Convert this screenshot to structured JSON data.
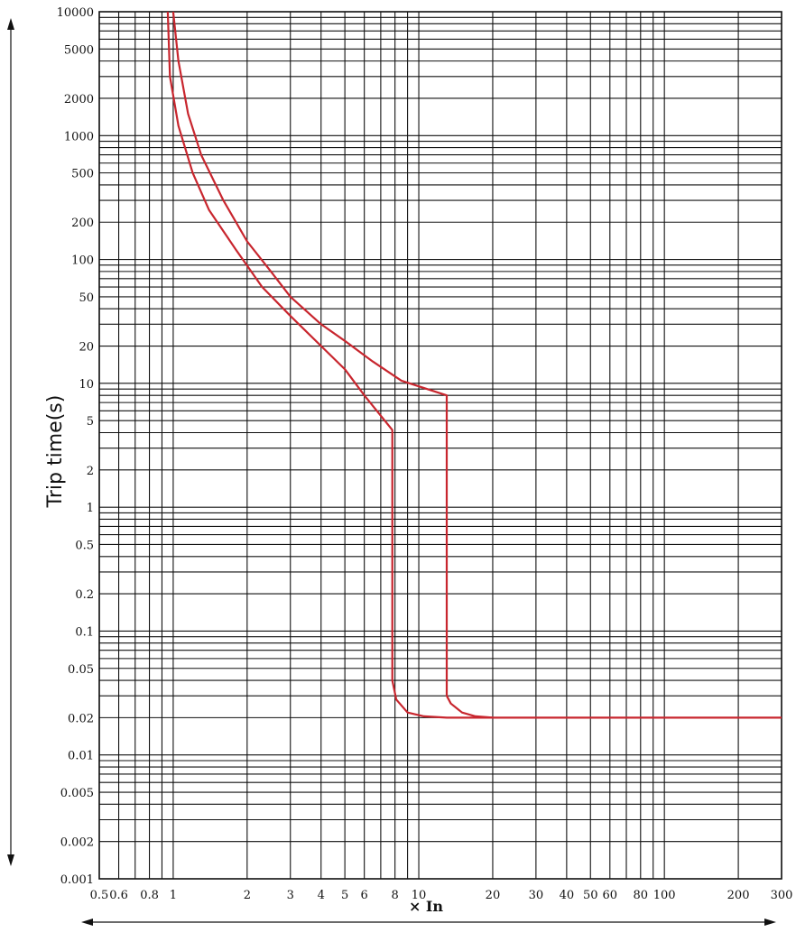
{
  "chart_data": {
    "type": "line",
    "ylabel": "Trip time(s)",
    "xlabel": "× In",
    "x_scale": "log",
    "y_scale": "log",
    "xlim": [
      0.5,
      300
    ],
    "ylim": [
      0.001,
      10000
    ],
    "grid": true,
    "x_ticks": [
      {
        "v": 0.5,
        "t": "0.5"
      },
      {
        "v": 0.6,
        "t": "0.6"
      },
      {
        "v": 0.8,
        "t": "0.8"
      },
      {
        "v": 1,
        "t": "1"
      },
      {
        "v": 2,
        "t": "2"
      },
      {
        "v": 3,
        "t": "3"
      },
      {
        "v": 4,
        "t": "4"
      },
      {
        "v": 5,
        "t": "5"
      },
      {
        "v": 6,
        "t": "6"
      },
      {
        "v": 8,
        "t": "8"
      },
      {
        "v": 10,
        "t": "10"
      },
      {
        "v": 20,
        "t": "20"
      },
      {
        "v": 30,
        "t": "30"
      },
      {
        "v": 40,
        "t": "40"
      },
      {
        "v": 50,
        "t": "50"
      },
      {
        "v": 60,
        "t": "60"
      },
      {
        "v": 80,
        "t": "80"
      },
      {
        "v": 100,
        "t": "100"
      },
      {
        "v": 200,
        "t": "200"
      },
      {
        "v": 300,
        "t": "300"
      }
    ],
    "y_ticks": [
      {
        "v": 10000,
        "t": "10000"
      },
      {
        "v": 5000,
        "t": "5000"
      },
      {
        "v": 2000,
        "t": "2000"
      },
      {
        "v": 1000,
        "t": "1000"
      },
      {
        "v": 500,
        "t": "500"
      },
      {
        "v": 200,
        "t": "200"
      },
      {
        "v": 100,
        "t": "100"
      },
      {
        "v": 50,
        "t": "50"
      },
      {
        "v": 20,
        "t": "20"
      },
      {
        "v": 10,
        "t": "10"
      },
      {
        "v": 5,
        "t": "5"
      },
      {
        "v": 2,
        "t": "2"
      },
      {
        "v": 1,
        "t": "1"
      },
      {
        "v": 0.5,
        "t": "0.5"
      },
      {
        "v": 0.2,
        "t": "0.2"
      },
      {
        "v": 0.1,
        "t": "0.1"
      },
      {
        "v": 0.05,
        "t": "0.05"
      },
      {
        "v": 0.02,
        "t": "0.02"
      },
      {
        "v": 0.01,
        "t": "0.01"
      },
      {
        "v": 0.005,
        "t": "0.005"
      },
      {
        "v": 0.002,
        "t": "0.002"
      },
      {
        "v": 0.001,
        "t": "0.001"
      }
    ],
    "colors": {
      "curve": "#c8262e",
      "grid": "#111111"
    },
    "series": [
      {
        "points": [
          [
            1.0,
            10000
          ],
          [
            1.05,
            4000
          ],
          [
            1.15,
            1500
          ],
          [
            1.3,
            700
          ],
          [
            1.6,
            300
          ],
          [
            2.0,
            140
          ],
          [
            2.5,
            80
          ],
          [
            3.0,
            50
          ],
          [
            4.0,
            30
          ],
          [
            5.0,
            22
          ],
          [
            6.5,
            15
          ],
          [
            8.5,
            10.5
          ],
          [
            13.0,
            8
          ],
          [
            13.0,
            0.03
          ],
          [
            13.5,
            0.026
          ],
          [
            15.0,
            0.022
          ],
          [
            17.0,
            0.0205
          ],
          [
            20.0,
            0.02
          ],
          [
            300.0,
            0.02
          ]
        ]
      },
      {
        "points": [
          [
            0.95,
            10000
          ],
          [
            0.97,
            3000
          ],
          [
            1.05,
            1200
          ],
          [
            1.2,
            500
          ],
          [
            1.4,
            250
          ],
          [
            1.8,
            120
          ],
          [
            2.3,
            60
          ],
          [
            3.0,
            35
          ],
          [
            4.0,
            20
          ],
          [
            5.0,
            13
          ],
          [
            6.0,
            8
          ],
          [
            7.8,
            4.2
          ],
          [
            7.8,
            0.04
          ],
          [
            8.1,
            0.028
          ],
          [
            9.0,
            0.022
          ],
          [
            10.5,
            0.0205
          ],
          [
            13.0,
            0.02
          ],
          [
            20.0,
            0.02
          ]
        ]
      }
    ]
  }
}
